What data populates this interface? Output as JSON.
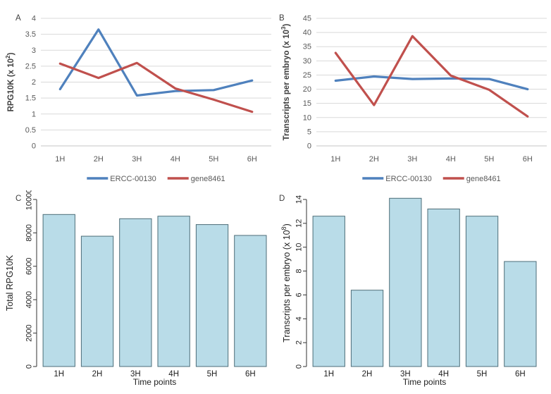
{
  "figure": {
    "background": "#FFFFFF"
  },
  "palette": {
    "grid": "#D9D9D9",
    "baseline": "#C6C6C6",
    "axis_text": "#595959",
    "axis_title": "#404040",
    "bar_fill": "#B9DCE8",
    "bar_stroke": "#4D6D78",
    "bar_axis_line": "#333333",
    "bar_axis_text": "#222222",
    "series_blue": "#4F81BD",
    "series_red": "#C0504D"
  },
  "chart_data": [
    {
      "panel_label": "A",
      "type": "line",
      "categories": [
        "1H",
        "2H",
        "3H",
        "4H",
        "5H",
        "6H"
      ],
      "series": [
        {
          "name": "ERCC-00130",
          "color": "#4F81BD",
          "values": [
            1.78,
            3.65,
            1.58,
            1.72,
            1.75,
            2.05
          ]
        },
        {
          "name": "gene8461",
          "color": "#C0504D",
          "values": [
            2.58,
            2.13,
            2.6,
            1.8,
            1.45,
            1.07
          ]
        }
      ],
      "ylabel_parts": [
        {
          "t": "RPG10K (x 10"
        },
        {
          "t": "2",
          "sup": true
        },
        {
          "t": ")"
        }
      ],
      "xlabel": "",
      "ylim": [
        0,
        4
      ],
      "ystep": 0.5,
      "grid": true,
      "legend_position": "bottom"
    },
    {
      "panel_label": "B",
      "type": "line",
      "categories": [
        "1H",
        "2H",
        "3H",
        "4H",
        "5H",
        "6H"
      ],
      "series": [
        {
          "name": "ERCC-00130",
          "color": "#4F81BD",
          "values": [
            23,
            24.5,
            23.6,
            23.8,
            23.6,
            20
          ]
        },
        {
          "name": "gene8461",
          "color": "#C0504D",
          "values": [
            32.8,
            14.4,
            38.7,
            24.8,
            19.8,
            10.4
          ]
        }
      ],
      "ylabel_parts": [
        {
          "t": "Transcripts per embryo (x 10"
        },
        {
          "t": "3",
          "sup": true
        },
        {
          "t": ")"
        }
      ],
      "xlabel": "",
      "ylim": [
        0,
        45
      ],
      "ystep": 5,
      "grid": true,
      "legend_position": "bottom"
    },
    {
      "panel_label": "C",
      "type": "bar",
      "categories": [
        "1H",
        "2H",
        "3H",
        "4H",
        "5H",
        "6H"
      ],
      "values": [
        9100,
        7800,
        8850,
        9000,
        8500,
        7850
      ],
      "ylabel_parts": [
        {
          "t": "Total RPG10K"
        }
      ],
      "xlabel": "Time points",
      "ylim": [
        0,
        10000
      ],
      "ystep": 2000,
      "grid": false
    },
    {
      "panel_label": "D",
      "type": "bar",
      "categories": [
        "1H",
        "2H",
        "3H",
        "4H",
        "5H",
        "6H"
      ],
      "values": [
        12.6,
        6.4,
        14.1,
        13.2,
        12.6,
        8.8
      ],
      "ylabel_parts": [
        {
          "t": "Transcripts per embryo (x 10"
        },
        {
          "t": "8",
          "sup": true
        },
        {
          "t": ")"
        }
      ],
      "xlabel": "Time points",
      "ylim": [
        0,
        14
      ],
      "ystep": 2,
      "grid": false
    }
  ]
}
